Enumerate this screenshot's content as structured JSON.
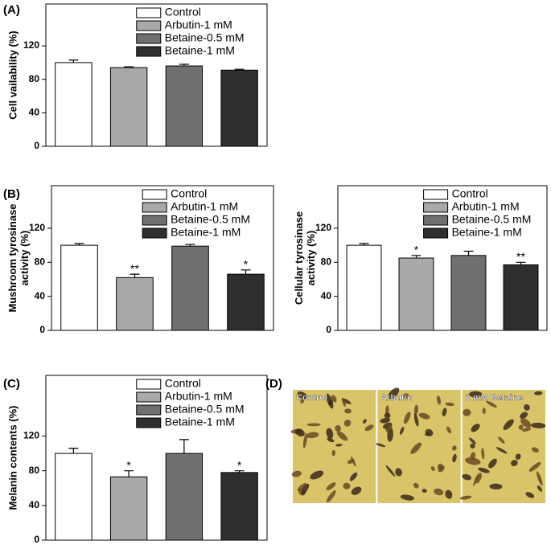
{
  "chart_data": [
    {
      "type": "bar",
      "panel": "(A)",
      "ylabel": [
        "Cell vailability (%)"
      ],
      "categories": [
        "Control",
        "Arbutin-1 mM",
        "Betaine-0.5 mM",
        "Betaine-1 mM"
      ],
      "colors": [
        "#ffffff",
        "#a9a9a9",
        "#707070",
        "#2f2f2f"
      ],
      "values": [
        100,
        94,
        96,
        91
      ],
      "errors": [
        3,
        1,
        2,
        1
      ],
      "annotations": [
        null,
        null,
        null,
        null
      ],
      "ylim": [
        0,
        170
      ],
      "yticks": [
        0,
        40,
        80,
        120
      ]
    },
    {
      "type": "bar",
      "panel": "(B)",
      "ylabel": [
        "Mushroom tyrosinase",
        "activity (%)"
      ],
      "categories": [
        "Control",
        "Arbutin-1 mM",
        "Betaine-0.5 mM",
        "Betaine-1 mM"
      ],
      "colors": [
        "#ffffff",
        "#a9a9a9",
        "#707070",
        "#2f2f2f"
      ],
      "values": [
        100,
        62,
        99,
        66
      ],
      "errors": [
        2,
        4,
        2,
        5
      ],
      "annotations": [
        null,
        "**",
        null,
        "*"
      ],
      "ylim": [
        0,
        170
      ],
      "yticks": [
        0,
        40,
        80,
        120
      ]
    },
    {
      "type": "bar",
      "ylabel": [
        "Cellular tyrosinase",
        "activity (%)"
      ],
      "categories": [
        "Control",
        "Arbutin-1 mM",
        "Betaine-0.5 mM",
        "Betaine-1 mM"
      ],
      "colors": [
        "#ffffff",
        "#a9a9a9",
        "#707070",
        "#2f2f2f"
      ],
      "values": [
        100,
        85,
        88,
        77
      ],
      "errors": [
        2,
        3,
        5,
        3
      ],
      "annotations": [
        null,
        "*",
        null,
        "**"
      ],
      "ylim": [
        0,
        170
      ],
      "yticks": [
        0,
        40,
        80,
        120
      ]
    },
    {
      "type": "bar",
      "panel": "(C)",
      "ylabel": [
        "Melanin contents (%)"
      ],
      "categories": [
        "Control",
        "Arbutin-1 mM",
        "Betaine-0.5 mM",
        "Betaine-1 mM"
      ],
      "colors": [
        "#ffffff",
        "#a9a9a9",
        "#707070",
        "#2f2f2f"
      ],
      "values": [
        100,
        73,
        100,
        78
      ],
      "errors": [
        6,
        7,
        16,
        2
      ],
      "annotations": [
        null,
        "*",
        null,
        "*"
      ],
      "ylim": [
        0,
        190
      ],
      "yticks": [
        0,
        40,
        80,
        120
      ]
    }
  ],
  "image_panel": {
    "panel": "(D)",
    "labels": [
      "Control",
      "Arbutin",
      "1 mM Betaine"
    ]
  }
}
